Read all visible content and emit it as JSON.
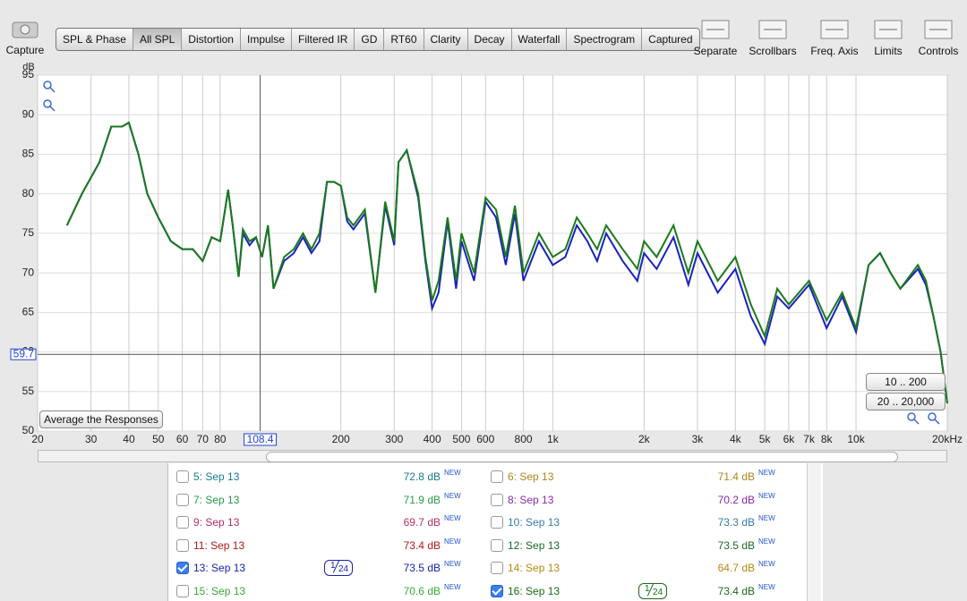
{
  "toolbar": {
    "capture": "Capture",
    "tabs": [
      "SPL & Phase",
      "All SPL",
      "Distortion",
      "Impulse",
      "Filtered IR",
      "GD",
      "RT60",
      "Clarity",
      "Decay",
      "Waterfall",
      "Spectrogram",
      "Captured"
    ],
    "active_tab": 1,
    "tools": [
      "Separate",
      "Scrollbars",
      "Freq. Axis",
      "Limits",
      "Controls"
    ]
  },
  "chart_data": {
    "type": "line",
    "y_label": "dB",
    "x": [
      25,
      28,
      32,
      35,
      38,
      40,
      43,
      46,
      50,
      55,
      60,
      65,
      70,
      75,
      80,
      85,
      88,
      92,
      95,
      100,
      105,
      110,
      115,
      120,
      130,
      140,
      150,
      160,
      170,
      180,
      190,
      200,
      210,
      220,
      240,
      260,
      280,
      300,
      310,
      330,
      360,
      380,
      400,
      420,
      450,
      480,
      500,
      550,
      600,
      650,
      700,
      750,
      800,
      900,
      1000,
      1100,
      1200,
      1300,
      1400,
      1500,
      1700,
      1900,
      2000,
      2200,
      2500,
      2800,
      3000,
      3500,
      4000,
      4500,
      5000,
      5500,
      6000,
      7000,
      8000,
      9000,
      10000,
      11000,
      12000,
      13000,
      14000,
      16000,
      17000,
      18000,
      19000,
      20000
    ],
    "series": [
      {
        "color": "#1a22c0",
        "values": [
          76,
          80,
          84,
          88.5,
          88.5,
          89,
          85,
          80,
          77,
          74,
          73,
          73,
          71.5,
          74.5,
          74,
          80.5,
          76,
          69.5,
          75,
          73.5,
          74.5,
          72,
          76,
          68,
          71.5,
          72.5,
          74.5,
          72.5,
          74,
          81.5,
          81.5,
          81,
          76.5,
          75.5,
          77.5,
          67.5,
          78.5,
          73.5,
          84,
          85.5,
          79.5,
          71.5,
          65.5,
          67.5,
          76.5,
          68,
          74,
          69,
          79,
          77,
          71,
          77.5,
          69,
          74,
          71,
          72,
          76,
          74,
          71.5,
          75,
          71.5,
          69,
          72.5,
          70.5,
          74.5,
          68.5,
          72.5,
          67.5,
          70.5,
          64.5,
          61,
          67,
          65.5,
          68.5,
          63,
          67,
          62.5,
          71,
          72.5,
          70,
          68,
          70.5,
          68.5,
          64.5,
          60,
          53.5
        ]
      },
      {
        "color": "#1a7a1a",
        "values": [
          76,
          80,
          84,
          88.5,
          88.5,
          89,
          85,
          80,
          77,
          74,
          73,
          73,
          71.5,
          74.5,
          74,
          80.5,
          76,
          69.5,
          75.5,
          74,
          74.5,
          72,
          76,
          68,
          72,
          73,
          75,
          73,
          75,
          81.5,
          81.5,
          81,
          77,
          76,
          78,
          67.5,
          79,
          74,
          84,
          85.5,
          80,
          72,
          66.5,
          69,
          77,
          69,
          75,
          70,
          79.5,
          78,
          72,
          78.5,
          70,
          75,
          72,
          73,
          77,
          75,
          73,
          76,
          73,
          70.5,
          74,
          72,
          76,
          70,
          74,
          69,
          72,
          66,
          62,
          68,
          66,
          69,
          64,
          67.5,
          63,
          71,
          72.5,
          70,
          68,
          71,
          69,
          64.5,
          60,
          53.5
        ]
      }
    ],
    "xlim": [
      20,
      20000
    ],
    "ylim": [
      50,
      95
    ],
    "xscale": "log",
    "xticks": [
      20,
      30,
      40,
      50,
      60,
      70,
      80,
      200,
      300,
      400,
      500,
      600,
      800,
      {
        "value": 1000,
        "label": "1k"
      },
      {
        "value": 2000,
        "label": "2k"
      },
      {
        "value": 3000,
        "label": "3k"
      },
      {
        "value": 4000,
        "label": "4k"
      },
      {
        "value": 5000,
        "label": "5k"
      },
      {
        "value": 6000,
        "label": "6k"
      },
      {
        "value": 7000,
        "label": "7k"
      },
      {
        "value": 8000,
        "label": "8k"
      },
      {
        "value": 10000,
        "label": "10k"
      },
      {
        "value": 20000,
        "label": "20kHz"
      }
    ],
    "yticks": [
      50,
      55,
      60,
      65,
      70,
      75,
      80,
      85,
      90,
      95
    ],
    "grid": true,
    "cursor_x": 108.4,
    "cursor_y": 59.7
  },
  "controls": {
    "average": "Average the Responses",
    "range_low": "10 .. 200",
    "range_full": "20 .. 20,000"
  },
  "table": {
    "new": "NEW",
    "rows": [
      {
        "label": "5: Sep 13",
        "level": "72.8 dB",
        "color": "#1a7a8a",
        "checked": false
      },
      {
        "label": "6: Sep 13",
        "level": "71.4 dB",
        "color": "#b08420",
        "checked": false
      },
      {
        "label": "7: Sep 13",
        "level": "71.9 dB",
        "color": "#2a9a4a",
        "checked": false
      },
      {
        "label": "8: Sep 13",
        "level": "70.2 dB",
        "color": "#8a2aa8",
        "checked": false
      },
      {
        "label": "9: Sep 13",
        "level": "69.7 dB",
        "color": "#b0306a",
        "checked": false
      },
      {
        "label": "10: Sep 13",
        "level": "73.3 dB",
        "color": "#3a7aa8",
        "checked": false
      },
      {
        "label": "11: Sep 13",
        "level": "73.4 dB",
        "color": "#aa1a1a",
        "checked": false
      },
      {
        "label": "12: Sep 13",
        "level": "73.5 dB",
        "color": "#1a6a2a",
        "checked": false
      },
      {
        "label": "13: Sep 13",
        "level": "73.5 dB",
        "color": "#1a22aa",
        "checked": true,
        "smoothing": {
          "num": "1",
          "den": "24"
        }
      },
      {
        "label": "14: Sep 13",
        "level": "64.7 dB",
        "color": "#b08a10",
        "checked": false
      },
      {
        "label": "15: Sep 13",
        "level": "70.6 dB",
        "color": "#3aaa3a",
        "checked": false
      },
      {
        "label": "16: Sep 13",
        "level": "73.4 dB",
        "color": "#1a6a1a",
        "checked": true,
        "smoothing": {
          "num": "1",
          "den": "24"
        }
      }
    ]
  }
}
